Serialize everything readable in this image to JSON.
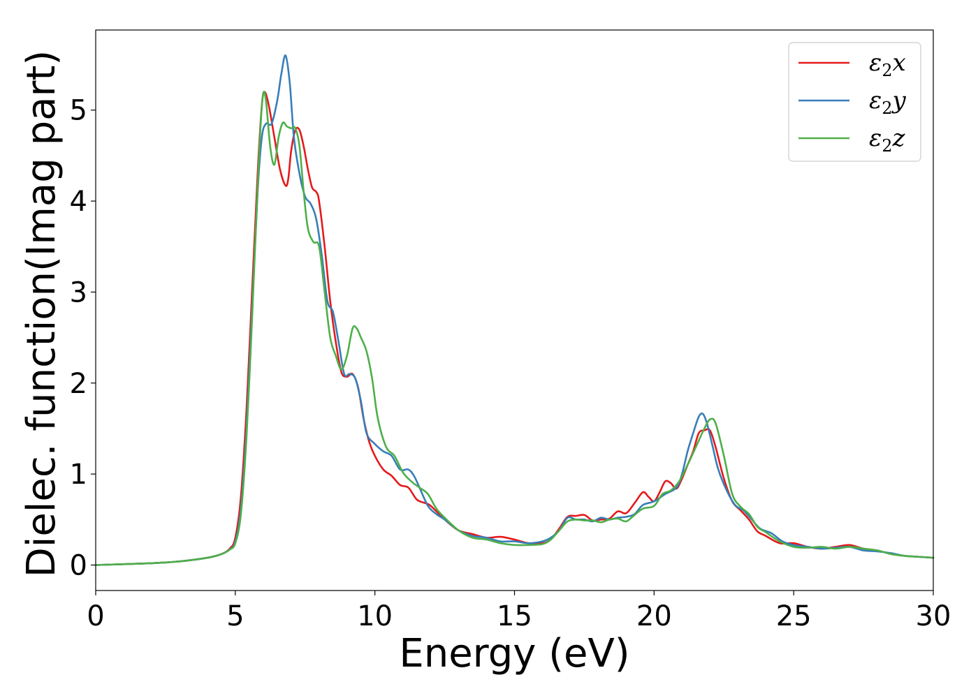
{
  "chart_data": {
    "type": "line",
    "xlabel": "Energy (eV)",
    "ylabel": "Dielec. function(Imag part)",
    "xlim": [
      0,
      30
    ],
    "ylim": [
      -0.28,
      5.88
    ],
    "xticks": [
      0,
      5,
      10,
      15,
      20,
      25,
      30
    ],
    "yticks": [
      0,
      1,
      2,
      3,
      4,
      5
    ],
    "grid": false,
    "legend_position": "top-right",
    "series": [
      {
        "name": "ε2x",
        "legend_main": "ε",
        "legend_sub": "2",
        "legend_tail": "x",
        "color": "#e41a1c",
        "x": [
          0,
          2,
          3,
          4,
          4.5,
          4.8,
          5.0,
          5.2,
          5.4,
          5.6,
          5.8,
          5.95,
          6.05,
          6.2,
          6.4,
          6.6,
          6.8,
          6.9,
          7.0,
          7.15,
          7.3,
          7.45,
          7.6,
          7.75,
          7.9,
          8.0,
          8.2,
          8.4,
          8.6,
          8.8,
          9.0,
          9.2,
          9.4,
          9.6,
          9.8,
          10.0,
          10.3,
          10.6,
          10.9,
          11.2,
          11.5,
          11.8,
          12.0,
          12.5,
          13.0,
          13.5,
          14.0,
          14.5,
          15.0,
          15.5,
          16.0,
          16.3,
          16.6,
          16.9,
          17.2,
          17.5,
          17.8,
          18.1,
          18.4,
          18.7,
          19.0,
          19.3,
          19.6,
          19.8,
          20.0,
          20.2,
          20.4,
          20.6,
          20.8,
          21.0,
          21.2,
          21.4,
          21.6,
          21.8,
          22.0,
          22.2,
          22.5,
          22.8,
          23.1,
          23.4,
          23.7,
          24.0,
          24.5,
          25.0,
          25.5,
          26.0,
          26.5,
          27.0,
          27.5,
          28.0,
          28.5,
          29.0,
          29.5,
          30.0
        ],
        "y": [
          0,
          0.02,
          0.04,
          0.08,
          0.12,
          0.18,
          0.3,
          0.75,
          1.7,
          3.0,
          4.3,
          5.05,
          5.2,
          5.05,
          4.7,
          4.35,
          4.17,
          4.25,
          4.55,
          4.78,
          4.78,
          4.6,
          4.35,
          4.15,
          4.1,
          4.0,
          3.5,
          2.9,
          2.45,
          2.12,
          2.07,
          2.1,
          1.95,
          1.6,
          1.35,
          1.2,
          1.05,
          0.98,
          0.88,
          0.85,
          0.72,
          0.68,
          0.65,
          0.5,
          0.38,
          0.34,
          0.3,
          0.31,
          0.28,
          0.24,
          0.24,
          0.28,
          0.4,
          0.53,
          0.54,
          0.55,
          0.49,
          0.5,
          0.51,
          0.59,
          0.57,
          0.68,
          0.8,
          0.75,
          0.7,
          0.8,
          0.92,
          0.9,
          0.84,
          0.95,
          1.1,
          1.25,
          1.45,
          1.48,
          1.48,
          1.3,
          0.95,
          0.7,
          0.6,
          0.5,
          0.37,
          0.32,
          0.24,
          0.24,
          0.2,
          0.18,
          0.2,
          0.22,
          0.18,
          0.16,
          0.12,
          0.1,
          0.09,
          0.08
        ]
      },
      {
        "name": "ε2y",
        "legend_main": "ε",
        "legend_sub": "2",
        "legend_tail": "y",
        "color": "#377eb8",
        "x": [
          0,
          2,
          3,
          4,
          4.5,
          4.8,
          5.0,
          5.2,
          5.4,
          5.6,
          5.8,
          5.95,
          6.1,
          6.3,
          6.5,
          6.65,
          6.8,
          6.95,
          7.1,
          7.3,
          7.5,
          7.7,
          7.9,
          8.1,
          8.3,
          8.5,
          8.7,
          8.9,
          9.1,
          9.3,
          9.5,
          9.7,
          10.0,
          10.3,
          10.6,
          10.9,
          11.2,
          11.4,
          11.6,
          11.9,
          12.2,
          12.5,
          13.0,
          13.5,
          14.0,
          14.5,
          15.0,
          15.5,
          16.0,
          16.3,
          16.6,
          16.9,
          17.2,
          17.5,
          17.8,
          18.1,
          18.4,
          18.7,
          19.0,
          19.3,
          19.6,
          20.0,
          20.4,
          20.8,
          21.0,
          21.2,
          21.4,
          21.6,
          21.75,
          21.9,
          22.1,
          22.3,
          22.6,
          22.9,
          23.2,
          23.5,
          23.8,
          24.2,
          24.6,
          25.0,
          25.5,
          26.0,
          26.5,
          27.0,
          27.5,
          28.0,
          28.5,
          29.0,
          29.5,
          30.0
        ],
        "y": [
          0,
          0.02,
          0.04,
          0.08,
          0.12,
          0.17,
          0.26,
          0.62,
          1.5,
          2.8,
          4.1,
          4.7,
          4.85,
          4.85,
          5.1,
          5.4,
          5.6,
          5.3,
          4.7,
          4.3,
          4.05,
          3.97,
          3.8,
          3.4,
          2.9,
          2.78,
          2.45,
          2.1,
          2.1,
          2.05,
          1.8,
          1.45,
          1.33,
          1.25,
          1.2,
          1.05,
          1.05,
          0.98,
          0.85,
          0.65,
          0.56,
          0.5,
          0.38,
          0.32,
          0.3,
          0.26,
          0.26,
          0.24,
          0.26,
          0.3,
          0.38,
          0.52,
          0.5,
          0.5,
          0.48,
          0.52,
          0.5,
          0.52,
          0.53,
          0.56,
          0.66,
          0.7,
          0.78,
          0.85,
          1.0,
          1.25,
          1.45,
          1.63,
          1.66,
          1.55,
          1.3,
          1.05,
          0.82,
          0.66,
          0.6,
          0.5,
          0.4,
          0.35,
          0.26,
          0.22,
          0.2,
          0.18,
          0.19,
          0.2,
          0.16,
          0.15,
          0.13,
          0.1,
          0.09,
          0.08
        ]
      },
      {
        "name": "ε2z",
        "legend_main": "ε",
        "legend_sub": "2",
        "legend_tail": "z",
        "color": "#4daf4a",
        "x": [
          0,
          2,
          3,
          4,
          4.5,
          4.8,
          5.0,
          5.2,
          5.4,
          5.6,
          5.75,
          5.9,
          6.0,
          6.1,
          6.25,
          6.4,
          6.55,
          6.7,
          6.85,
          7.0,
          7.15,
          7.3,
          7.45,
          7.6,
          7.8,
          8.0,
          8.2,
          8.4,
          8.6,
          8.8,
          9.0,
          9.2,
          9.35,
          9.5,
          9.7,
          9.9,
          10.1,
          10.4,
          10.7,
          11.0,
          11.3,
          11.6,
          11.9,
          12.2,
          12.5,
          13.0,
          13.5,
          14.0,
          14.5,
          15.0,
          15.5,
          16.0,
          16.3,
          16.6,
          16.9,
          17.2,
          17.5,
          17.8,
          18.1,
          18.4,
          18.7,
          19.0,
          19.3,
          19.6,
          20.0,
          20.3,
          20.6,
          20.9,
          21.2,
          21.5,
          21.8,
          22.0,
          22.2,
          22.5,
          22.8,
          23.1,
          23.4,
          23.7,
          24.0,
          24.5,
          25.0,
          25.5,
          26.0,
          26.5,
          27.0,
          27.5,
          28.0,
          28.5,
          29.0,
          29.5,
          30.0
        ],
        "y": [
          0,
          0.02,
          0.04,
          0.08,
          0.12,
          0.17,
          0.24,
          0.56,
          1.4,
          2.7,
          3.8,
          4.8,
          5.18,
          5.1,
          4.6,
          4.4,
          4.7,
          4.86,
          4.82,
          4.8,
          4.8,
          4.6,
          4.1,
          3.7,
          3.55,
          3.5,
          3.0,
          2.5,
          2.3,
          2.15,
          2.3,
          2.6,
          2.6,
          2.5,
          2.35,
          2.05,
          1.62,
          1.3,
          1.2,
          1.02,
          0.92,
          0.85,
          0.78,
          0.62,
          0.52,
          0.38,
          0.3,
          0.28,
          0.24,
          0.22,
          0.22,
          0.23,
          0.28,
          0.38,
          0.48,
          0.5,
          0.49,
          0.49,
          0.47,
          0.5,
          0.51,
          0.48,
          0.55,
          0.62,
          0.65,
          0.78,
          0.82,
          0.92,
          1.1,
          1.3,
          1.5,
          1.6,
          1.56,
          1.2,
          0.78,
          0.64,
          0.56,
          0.42,
          0.36,
          0.26,
          0.2,
          0.19,
          0.2,
          0.18,
          0.2,
          0.18,
          0.16,
          0.12,
          0.1,
          0.09,
          0.08
        ]
      }
    ]
  }
}
